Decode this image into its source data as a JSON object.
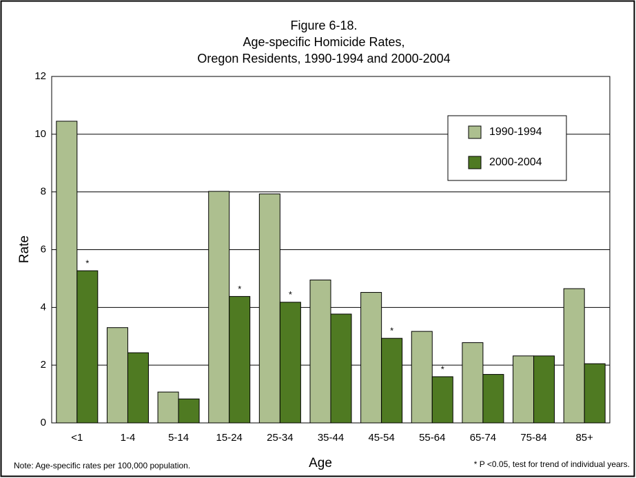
{
  "chart_data": {
    "type": "bar",
    "title": [
      "Figure 6-18.",
      "Age-specific Homicide Rates,",
      "Oregon Residents, 1990-1994 and 2000-2004"
    ],
    "x_label": "Age",
    "y_label": "Rate",
    "categories": [
      "<1",
      "1-4",
      "5-14",
      "15-24",
      "25-34",
      "35-44",
      "45-54",
      "55-64",
      "65-74",
      "75-84",
      "85+"
    ],
    "series": [
      {
        "name": "1990-1994",
        "color": "#adbf8f",
        "values": [
          10.45,
          3.3,
          1.07,
          8.02,
          7.93,
          4.95,
          4.52,
          3.17,
          2.78,
          2.32,
          4.65
        ]
      },
      {
        "name": "2000-2004",
        "color": "#4f7a22",
        "values": [
          5.27,
          2.43,
          0.83,
          4.38,
          4.18,
          3.77,
          2.93,
          1.6,
          1.68,
          2.32,
          2.05
        ],
        "flags": [
          "*",
          null,
          null,
          "*",
          "*",
          null,
          "*",
          "*",
          null,
          null,
          null
        ]
      }
    ],
    "ylim": [
      0,
      12
    ],
    "yticks": [
      0,
      2,
      4,
      6,
      8,
      10,
      12
    ],
    "grid": true,
    "legend": "top-right",
    "note_left": "Note:  Age-specific rates per 100,000 population.",
    "note_right": "* P <0.05, test for trend of individual years."
  }
}
